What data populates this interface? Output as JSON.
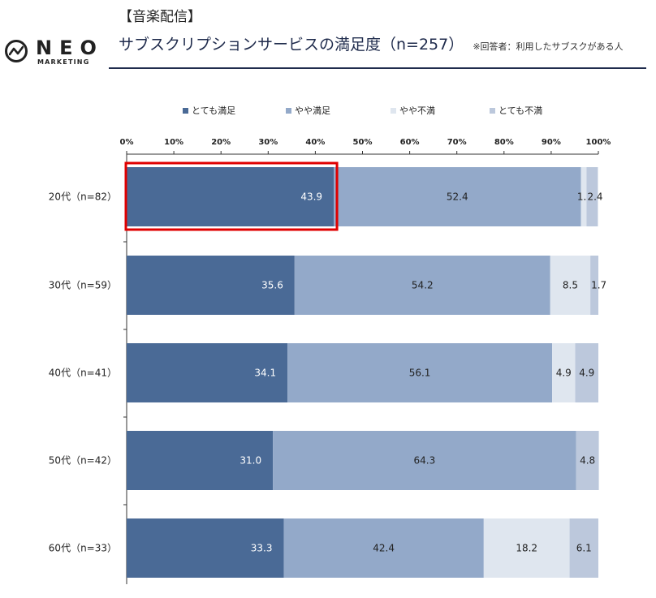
{
  "brand": {
    "name": "NEO",
    "sub": "MARKETING"
  },
  "header": {
    "category": "【音楽配信】",
    "title": "サブスクリプションサービスの満足度（n=257）",
    "note": "※回答者：利用したサブスクがある人"
  },
  "colors": {
    "series": [
      "#4a6a96",
      "#93a9c9",
      "#dfe6ef",
      "#bcc8dc"
    ],
    "title_rule": "#1f2b4c",
    "highlight": "#e00000"
  },
  "chart_data": {
    "type": "bar",
    "orientation": "horizontal",
    "stacked": true,
    "title": "サブスクリプションサービスの満足度（n=257）",
    "xlabel": "",
    "ylabel": "",
    "xlim": [
      0,
      100
    ],
    "tick_labels": [
      "0%",
      "10%",
      "20%",
      "30%",
      "40%",
      "50%",
      "60%",
      "70%",
      "80%",
      "90%",
      "100%"
    ],
    "legend_position": "top",
    "categories": [
      "20代（n=82）",
      "30代（n=59）",
      "40代（n=41）",
      "50代（n=42）",
      "60代（n=33）"
    ],
    "series": [
      {
        "name": "とても満足",
        "values": [
          43.9,
          35.6,
          34.1,
          31.0,
          33.3
        ],
        "labels": [
          "43.9",
          "35.6",
          "34.1",
          "31.0",
          "33.3"
        ]
      },
      {
        "name": "やや満足",
        "values": [
          52.4,
          54.2,
          56.1,
          64.3,
          42.4
        ],
        "labels": [
          "52.4",
          "54.2",
          "56.1",
          "64.3",
          "42.4"
        ]
      },
      {
        "name": "やや不満",
        "values": [
          1.2,
          8.5,
          4.9,
          0,
          18.2
        ],
        "labels": [
          "1.2",
          "8.5",
          "4.9",
          "",
          "18.2"
        ]
      },
      {
        "name": "とても不満",
        "values": [
          2.4,
          1.7,
          4.9,
          4.8,
          6.1
        ],
        "labels": [
          "2.4",
          "1.7",
          "4.9",
          "4.8",
          "6.1"
        ]
      }
    ],
    "highlight": {
      "category_index": 0,
      "series_index": 0
    }
  }
}
